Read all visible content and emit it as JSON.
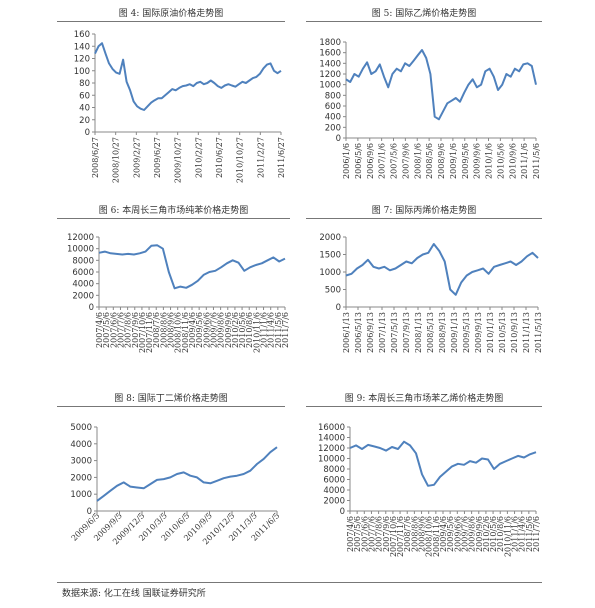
{
  "chart_data": [
    {
      "type": "line",
      "title": "图 4: 国际原油价格走势图",
      "ylim": [
        0,
        160
      ],
      "yticks": [
        0,
        20,
        40,
        60,
        80,
        100,
        120,
        140,
        160
      ],
      "xlabels": [
        "2008/6/27",
        "2008/10/27",
        "2009/2/27",
        "2009/6/27",
        "2009/10/27",
        "2010/2/27",
        "2010/6/27",
        "2010/10/27",
        "2011/2/27",
        "2011/6/27"
      ],
      "color": "#4f81bd",
      "series": [
        {
          "values": [
            128,
            140,
            145,
            128,
            112,
            103,
            97,
            95,
            118,
            82,
            68,
            50,
            42,
            38,
            36,
            42,
            48,
            52,
            55,
            55,
            60,
            65,
            70,
            68,
            72,
            75,
            76,
            78,
            75,
            80,
            82,
            78,
            80,
            84,
            80,
            75,
            72,
            76,
            78,
            76,
            74,
            78,
            82,
            80,
            84,
            88,
            90,
            95,
            104,
            110,
            112,
            100,
            96,
            100
          ]
        }
      ]
    },
    {
      "type": "line",
      "title": "图 5: 国际乙烯价格走势图",
      "ylim": [
        0,
        1800
      ],
      "yticks": [
        0,
        200,
        400,
        600,
        800,
        1000,
        1200,
        1400,
        1600,
        1800
      ],
      "xlabels": [
        "2006/1/6",
        "2006/5/6",
        "2006/9/6",
        "2007/1/6",
        "2007/5/6",
        "2007/9/6",
        "2008/1/6",
        "2008/5/6",
        "2008/9/6",
        "2009/1/6",
        "2009/5/6",
        "2009/9/6",
        "2010/1/6",
        "2010/5/6",
        "2010/9/6",
        "2011/1/6",
        "2011/5/6"
      ],
      "color": "#4f81bd",
      "series": [
        {
          "values": [
            1100,
            1050,
            1200,
            1150,
            1300,
            1420,
            1200,
            1250,
            1380,
            1150,
            950,
            1200,
            1300,
            1250,
            1400,
            1350,
            1450,
            1550,
            1650,
            1500,
            1200,
            400,
            350,
            500,
            650,
            700,
            750,
            680,
            850,
            1000,
            1100,
            950,
            1000,
            1250,
            1300,
            1150,
            900,
            1000,
            1200,
            1150,
            1300,
            1250,
            1380,
            1400,
            1350,
            1000
          ]
        }
      ]
    },
    {
      "type": "line",
      "title": "图 6: 本周长三角市场纯苯价格走势图",
      "ylim": [
        0,
        12000
      ],
      "yticks": [
        0,
        2000,
        4000,
        6000,
        8000,
        10000,
        12000
      ],
      "xlabels": [
        "2007/4/6",
        "2007/5/6",
        "2007/6/6",
        "2007/7/6",
        "2007/8/6",
        "2007/9/6",
        "2007/10/6",
        "2007/11/6",
        "2008/7/6",
        "2008/8/6",
        "2008/9/6",
        "2008/10/6",
        "2008/11/6",
        "2009/4/6",
        "2009/5/6",
        "2009/6/6",
        "2009/7/6",
        "2009/8/6",
        "2009/9/6",
        "2010/2/6",
        "2010/5/6",
        "2010/8/6",
        "2010/11/6",
        "2011/1/6",
        "2011/4/6",
        "2011/5/6",
        "2011/7/6"
      ],
      "color": "#4f81bd",
      "series": [
        {
          "values": [
            9300,
            9500,
            9200,
            9100,
            9000,
            9100,
            9000,
            9200,
            9500,
            10500,
            10600,
            10000,
            6000,
            3200,
            3500,
            3300,
            3800,
            4500,
            5500,
            6000,
            6200,
            6800,
            7500,
            8000,
            7600,
            6200,
            6800,
            7200,
            7500,
            8000,
            8500,
            7800,
            8300
          ]
        }
      ]
    },
    {
      "type": "line",
      "title": "图 7: 国际丙烯价格走势图",
      "ylim": [
        0,
        2000
      ],
      "yticks": [
        0,
        500,
        1000,
        1500,
        2000
      ],
      "xlabels": [
        "2006/1/13",
        "2006/5/13",
        "2006/9/13",
        "2007/1/13",
        "2007/5/13",
        "2007/9/13",
        "2008/1/13",
        "2008/5/13",
        "2008/9/13",
        "2009/1/13",
        "2009/5/13",
        "2009/9/13",
        "2010/1/13",
        "2010/5/13",
        "2010/9/13",
        "2011/1/13",
        "2011/5/13"
      ],
      "color": "#4f81bd",
      "series": [
        {
          "values": [
            900,
            950,
            1100,
            1200,
            1350,
            1150,
            1100,
            1150,
            1050,
            1100,
            1200,
            1300,
            1250,
            1400,
            1500,
            1550,
            1800,
            1600,
            1300,
            500,
            350,
            700,
            900,
            1000,
            1050,
            1100,
            950,
            1150,
            1200,
            1250,
            1300,
            1200,
            1300,
            1450,
            1550,
            1400
          ]
        }
      ]
    },
    {
      "type": "line",
      "title": "图 8: 国际丁二烯价格走势图",
      "ylim": [
        0,
        5000
      ],
      "yticks": [
        0,
        1000,
        2000,
        3000,
        4000,
        5000
      ],
      "xlabels": [
        "2009/6/5",
        "2009/9/5",
        "2009/12/5",
        "2010/3/5",
        "2010/6/5",
        "2010/9/5",
        "2010/12/5",
        "2011/3/5",
        "2011/6/5"
      ],
      "color": "#4f81bd",
      "series": [
        {
          "values": [
            600,
            900,
            1200,
            1500,
            1700,
            1450,
            1400,
            1350,
            1600,
            1850,
            1900,
            2000,
            2200,
            2300,
            2100,
            2000,
            1700,
            1650,
            1800,
            1950,
            2050,
            2100,
            2200,
            2400,
            2800,
            3100,
            3500,
            3800
          ]
        }
      ]
    },
    {
      "type": "line",
      "title": "图 9: 本周长三角市场苯乙烯价格走势图",
      "ylim": [
        0,
        16000
      ],
      "yticks": [
        0,
        2000,
        4000,
        6000,
        8000,
        10000,
        12000,
        14000,
        16000
      ],
      "xlabels": [
        "2007/4/6",
        "2007/5/6",
        "2007/6/6",
        "2007/7/6",
        "2007/8/6",
        "2007/9/6",
        "2007/10/6",
        "2007/11/6",
        "2008/7/6",
        "2008/8/6",
        "2008/9/6",
        "2008/10/6",
        "2008/11/6",
        "2009/4/6",
        "2009/5/6",
        "2009/6/6",
        "2009/7/6",
        "2009/8/6",
        "2009/9/6",
        "2010/2/6",
        "2010/5/6",
        "2010/8/6",
        "2010/11/6",
        "2011/1/6",
        "2011/4/6",
        "2011/5/6",
        "2011/7/6"
      ],
      "color": "#4f81bd",
      "series": [
        {
          "values": [
            12000,
            12500,
            11800,
            12600,
            12300,
            12000,
            11500,
            12200,
            11800,
            13200,
            12500,
            11000,
            7000,
            4800,
            5000,
            6500,
            7500,
            8500,
            9000,
            8800,
            9500,
            9200,
            10000,
            9800,
            8000,
            9000,
            9500,
            10000,
            10500,
            10200,
            10800,
            11200
          ]
        }
      ]
    }
  ],
  "source": "数据来源: 化工在线 国联证券研究所"
}
